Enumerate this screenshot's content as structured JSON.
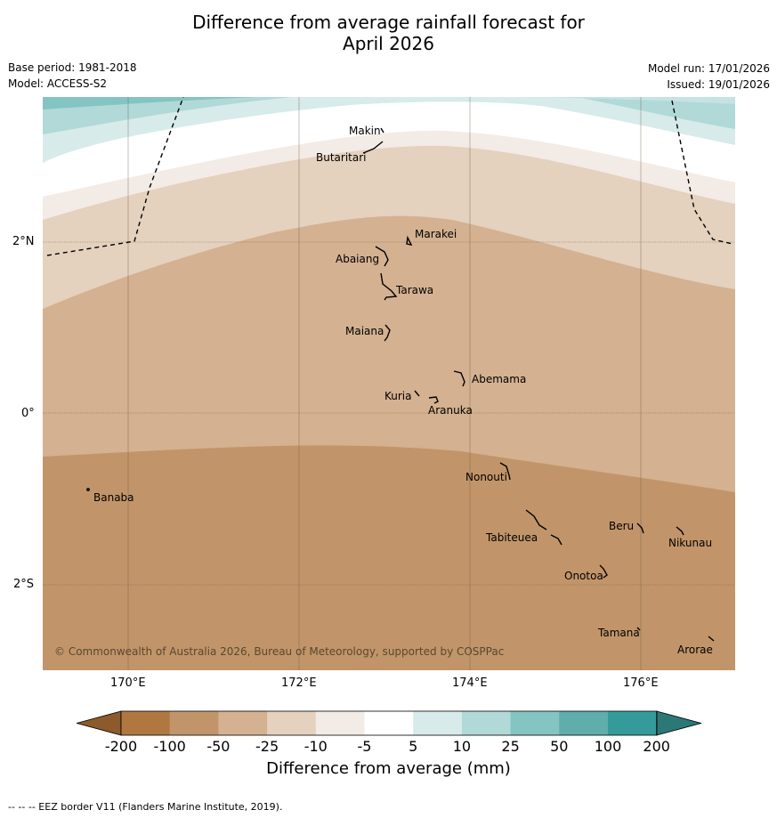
{
  "title_line1": "Difference from average rainfall forecast for",
  "title_line2": "April 2026",
  "base_period": "Base period: 1981-2018",
  "model": "Model: ACCESS-S2",
  "model_run": "Model run: 17/01/2026",
  "issued": "Issued: 19/01/2026",
  "copyright": "© Commonwealth of Australia 2026, Bureau of Meteorology, supported by COSPPac",
  "lat_labels": [
    "2°N",
    "0°",
    "2°S"
  ],
  "lon_labels": [
    "170°E",
    "172°E",
    "174°E",
    "176°E"
  ],
  "places": [
    "Makin",
    "Butaritari",
    "Marakei",
    "Abaiang",
    "Tarawa",
    "Maiana",
    "Abemama",
    "Kuria",
    "Aranuka",
    "Nonouti",
    "Banaba",
    "Beru",
    "Nikunau",
    "Tabiteuea",
    "Onotoa",
    "Tamana",
    "Arorae"
  ],
  "colorbar": {
    "title": "Difference from average (mm)",
    "tick_labels": [
      "-200",
      "-100",
      "-50",
      "-25",
      "-10",
      "-5",
      "5",
      "10",
      "25",
      "50",
      "100",
      "200"
    ],
    "colors": [
      "#8c5a2b",
      "#b07840",
      "#c19569",
      "#d4b190",
      "#e4d1be",
      "#f3ebe5",
      "#ffffff",
      "#d7ebea",
      "#b0d9d8",
      "#84c4c2",
      "#5faeac",
      "#359b9a",
      "#2a7977"
    ]
  },
  "footnote": "--  --  -- EEZ border V11 (Flanders Marine Institute, 2019)."
}
